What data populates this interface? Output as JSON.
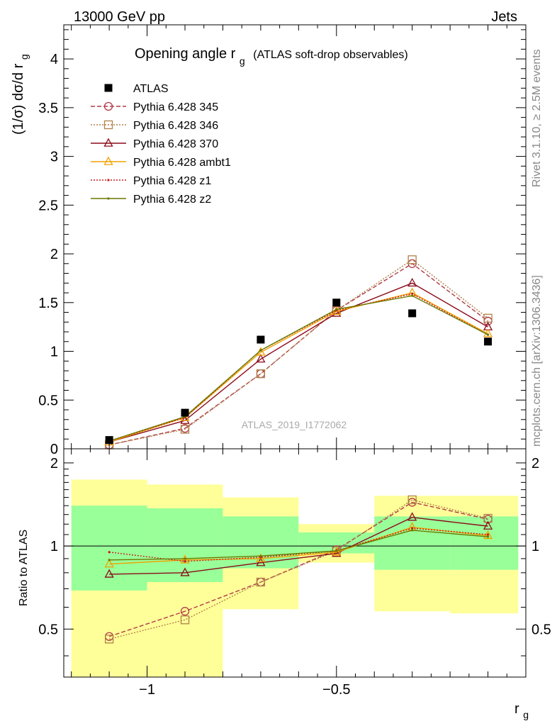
{
  "header": {
    "left": "13000 GeV pp",
    "right": "Jets"
  },
  "side_labels": {
    "rivet": "Rivet 3.1.10, ≥ 2.5M events",
    "mcplots": "mcplots.cern.ch [arXiv:1306.3436]"
  },
  "chart_data": [
    {
      "type": "line",
      "panel": "main",
      "title_main": "Opening angle r",
      "title_sub": "g",
      "title_extra": "(ATLAS soft-drop observables)",
      "ylabel_main": "(1/σ) dσ/d r",
      "ylabel_sub": "g",
      "watermark": "ATLAS_2019_I1772062",
      "ylim": [
        0,
        4.35
      ],
      "xlim": [
        -1.22,
        0.0
      ],
      "yticks": [
        0,
        0.5,
        1,
        1.5,
        2,
        2.5,
        3,
        3.5,
        4
      ],
      "ytick_labels": [
        "0",
        "0.5",
        "1",
        "1.5",
        "2",
        "2.5",
        "3",
        "3.5",
        "4"
      ],
      "legend_position": "top-left",
      "x": [
        -1.1,
        -0.9,
        -0.7,
        -0.5,
        -0.3,
        -0.1
      ],
      "data": {
        "name": "ATLAS",
        "values": [
          0.09,
          0.37,
          1.12,
          1.5,
          1.39,
          1.1
        ]
      },
      "series": [
        {
          "name": "Pythia 6.428 345",
          "color": "#b03a48",
          "dash": "6,3",
          "marker": "circle",
          "values": [
            0.04,
            0.21,
            0.77,
            1.42,
            1.9,
            1.31
          ]
        },
        {
          "name": "Pythia 6.428 346",
          "color": "#b0814a",
          "dash": "2,2",
          "marker": "square",
          "values": [
            0.04,
            0.2,
            0.77,
            1.42,
            1.94,
            1.34
          ]
        },
        {
          "name": "Pythia 6.428 370",
          "color": "#8b0a1a",
          "dash": "",
          "marker": "triangle",
          "values": [
            0.07,
            0.29,
            0.92,
            1.39,
            1.7,
            1.25
          ]
        },
        {
          "name": "Pythia 6.428 ambt1",
          "color": "#f0a000",
          "dash": "",
          "marker": "triangle",
          "values": [
            0.07,
            0.32,
            0.99,
            1.41,
            1.6,
            1.18
          ]
        },
        {
          "name": "Pythia 6.428 z1",
          "color": "#c81e1e",
          "dash": "2,2",
          "marker": "dot",
          "values": [
            0.08,
            0.32,
            1.01,
            1.42,
            1.59,
            1.17
          ]
        },
        {
          "name": "Pythia 6.428 z2",
          "color": "#6b7a00",
          "dash": "",
          "marker": "dot",
          "values": [
            0.08,
            0.33,
            1.01,
            1.43,
            1.57,
            1.17
          ]
        }
      ]
    },
    {
      "type": "line",
      "panel": "ratio",
      "ylabel": "Ratio to ATLAS",
      "xlabel_main": "r",
      "xlabel_sub": "g",
      "ylim": [
        0.335,
        2.25
      ],
      "xlim": [
        -1.22,
        0.0
      ],
      "yticks": [
        0.5,
        1,
        2
      ],
      "ytick_labels": [
        "0.5",
        "1",
        "2"
      ],
      "xticks": [
        -1,
        -0.5
      ],
      "xtick_labels": [
        "−1",
        "−0.5"
      ],
      "bands": [
        {
          "x0": -1.2,
          "x1": -1.0,
          "yellow": [
            0.335,
            1.74
          ],
          "green": [
            0.69,
            1.4
          ]
        },
        {
          "x0": -1.0,
          "x1": -0.8,
          "yellow": [
            0.335,
            1.67
          ],
          "green": [
            0.74,
            1.37
          ]
        },
        {
          "x0": -0.8,
          "x1": -0.6,
          "yellow": [
            0.59,
            1.5
          ],
          "green": [
            0.83,
            1.28
          ]
        },
        {
          "x0": -0.6,
          "x1": -0.4,
          "yellow": [
            0.87,
            1.2
          ],
          "green": [
            0.94,
            1.12
          ]
        },
        {
          "x0": -0.4,
          "x1": -0.2,
          "yellow": [
            0.58,
            1.52
          ],
          "green": [
            0.82,
            1.28
          ]
        },
        {
          "x0": -0.2,
          "x1": -0.02,
          "yellow": [
            0.57,
            1.52
          ],
          "green": [
            0.82,
            1.28
          ]
        }
      ],
      "x": [
        -1.1,
        -0.9,
        -0.7,
        -0.5,
        -0.3,
        -0.1
      ],
      "series": [
        {
          "name": "Pythia 6.428 345",
          "values": [
            0.47,
            0.58,
            0.74,
            0.97,
            1.44,
            1.25
          ]
        },
        {
          "name": "Pythia 6.428 346",
          "values": [
            0.46,
            0.54,
            0.74,
            0.96,
            1.47,
            1.26
          ]
        },
        {
          "name": "Pythia 6.428 370",
          "values": [
            0.79,
            0.8,
            0.87,
            0.94,
            1.27,
            1.18
          ]
        },
        {
          "name": "Pythia 6.428 ambt1",
          "values": [
            0.86,
            0.89,
            0.9,
            0.95,
            1.17,
            1.09
          ]
        },
        {
          "name": "Pythia 6.428 z1",
          "values": [
            0.95,
            0.88,
            0.91,
            0.96,
            1.16,
            1.1
          ]
        },
        {
          "name": "Pythia 6.428 z2",
          "values": [
            0.89,
            0.9,
            0.92,
            0.96,
            1.14,
            1.08
          ]
        }
      ]
    }
  ]
}
